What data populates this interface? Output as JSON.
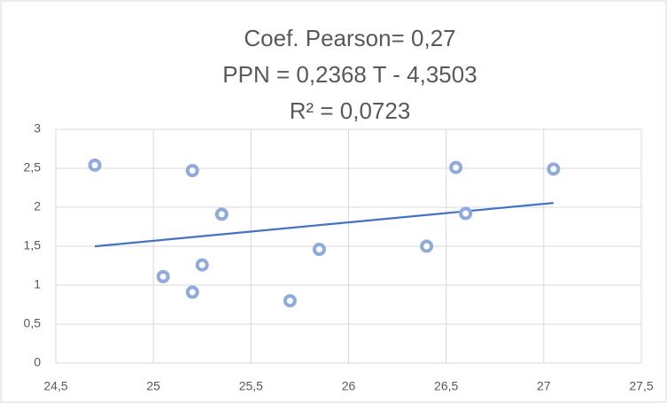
{
  "chart_data": {
    "type": "scatter",
    "title": [
      "Coef. Pearson= 0,27",
      "PPN = 0,2368 T - 4,3503",
      "R² = 0,0723"
    ],
    "series": [
      {
        "color": "#8faadc",
        "x": [
          24.7,
          25.2,
          25.35,
          25.05,
          25.25,
          25.2,
          25.7,
          25.85,
          26.4,
          26.55,
          26.6,
          27.05
        ],
        "values": [
          2.54,
          2.47,
          1.91,
          1.11,
          1.26,
          0.91,
          0.8,
          1.46,
          1.5,
          2.51,
          1.92,
          2.49
        ]
      }
    ],
    "trendline": {
      "slope": 0.2368,
      "intercept": -4.3503,
      "color": "#4472c4"
    },
    "xlim": [
      24.5,
      27.5
    ],
    "xticks": [
      {
        "value": 24.5,
        "label": "24,5"
      },
      25,
      {
        "value": 25.5,
        "label": "25,5"
      },
      26,
      {
        "value": 26.5,
        "label": "26,5"
      },
      27,
      {
        "value": 27.5,
        "label": "27,5"
      }
    ],
    "ylim": [
      0,
      3
    ],
    "yticks": [
      0,
      {
        "value": 0.5,
        "label": "0,5"
      },
      1,
      {
        "value": 1.5,
        "label": "1,5"
      },
      2,
      {
        "value": 2.5,
        "label": "2,5"
      },
      3
    ],
    "grid": true
  }
}
